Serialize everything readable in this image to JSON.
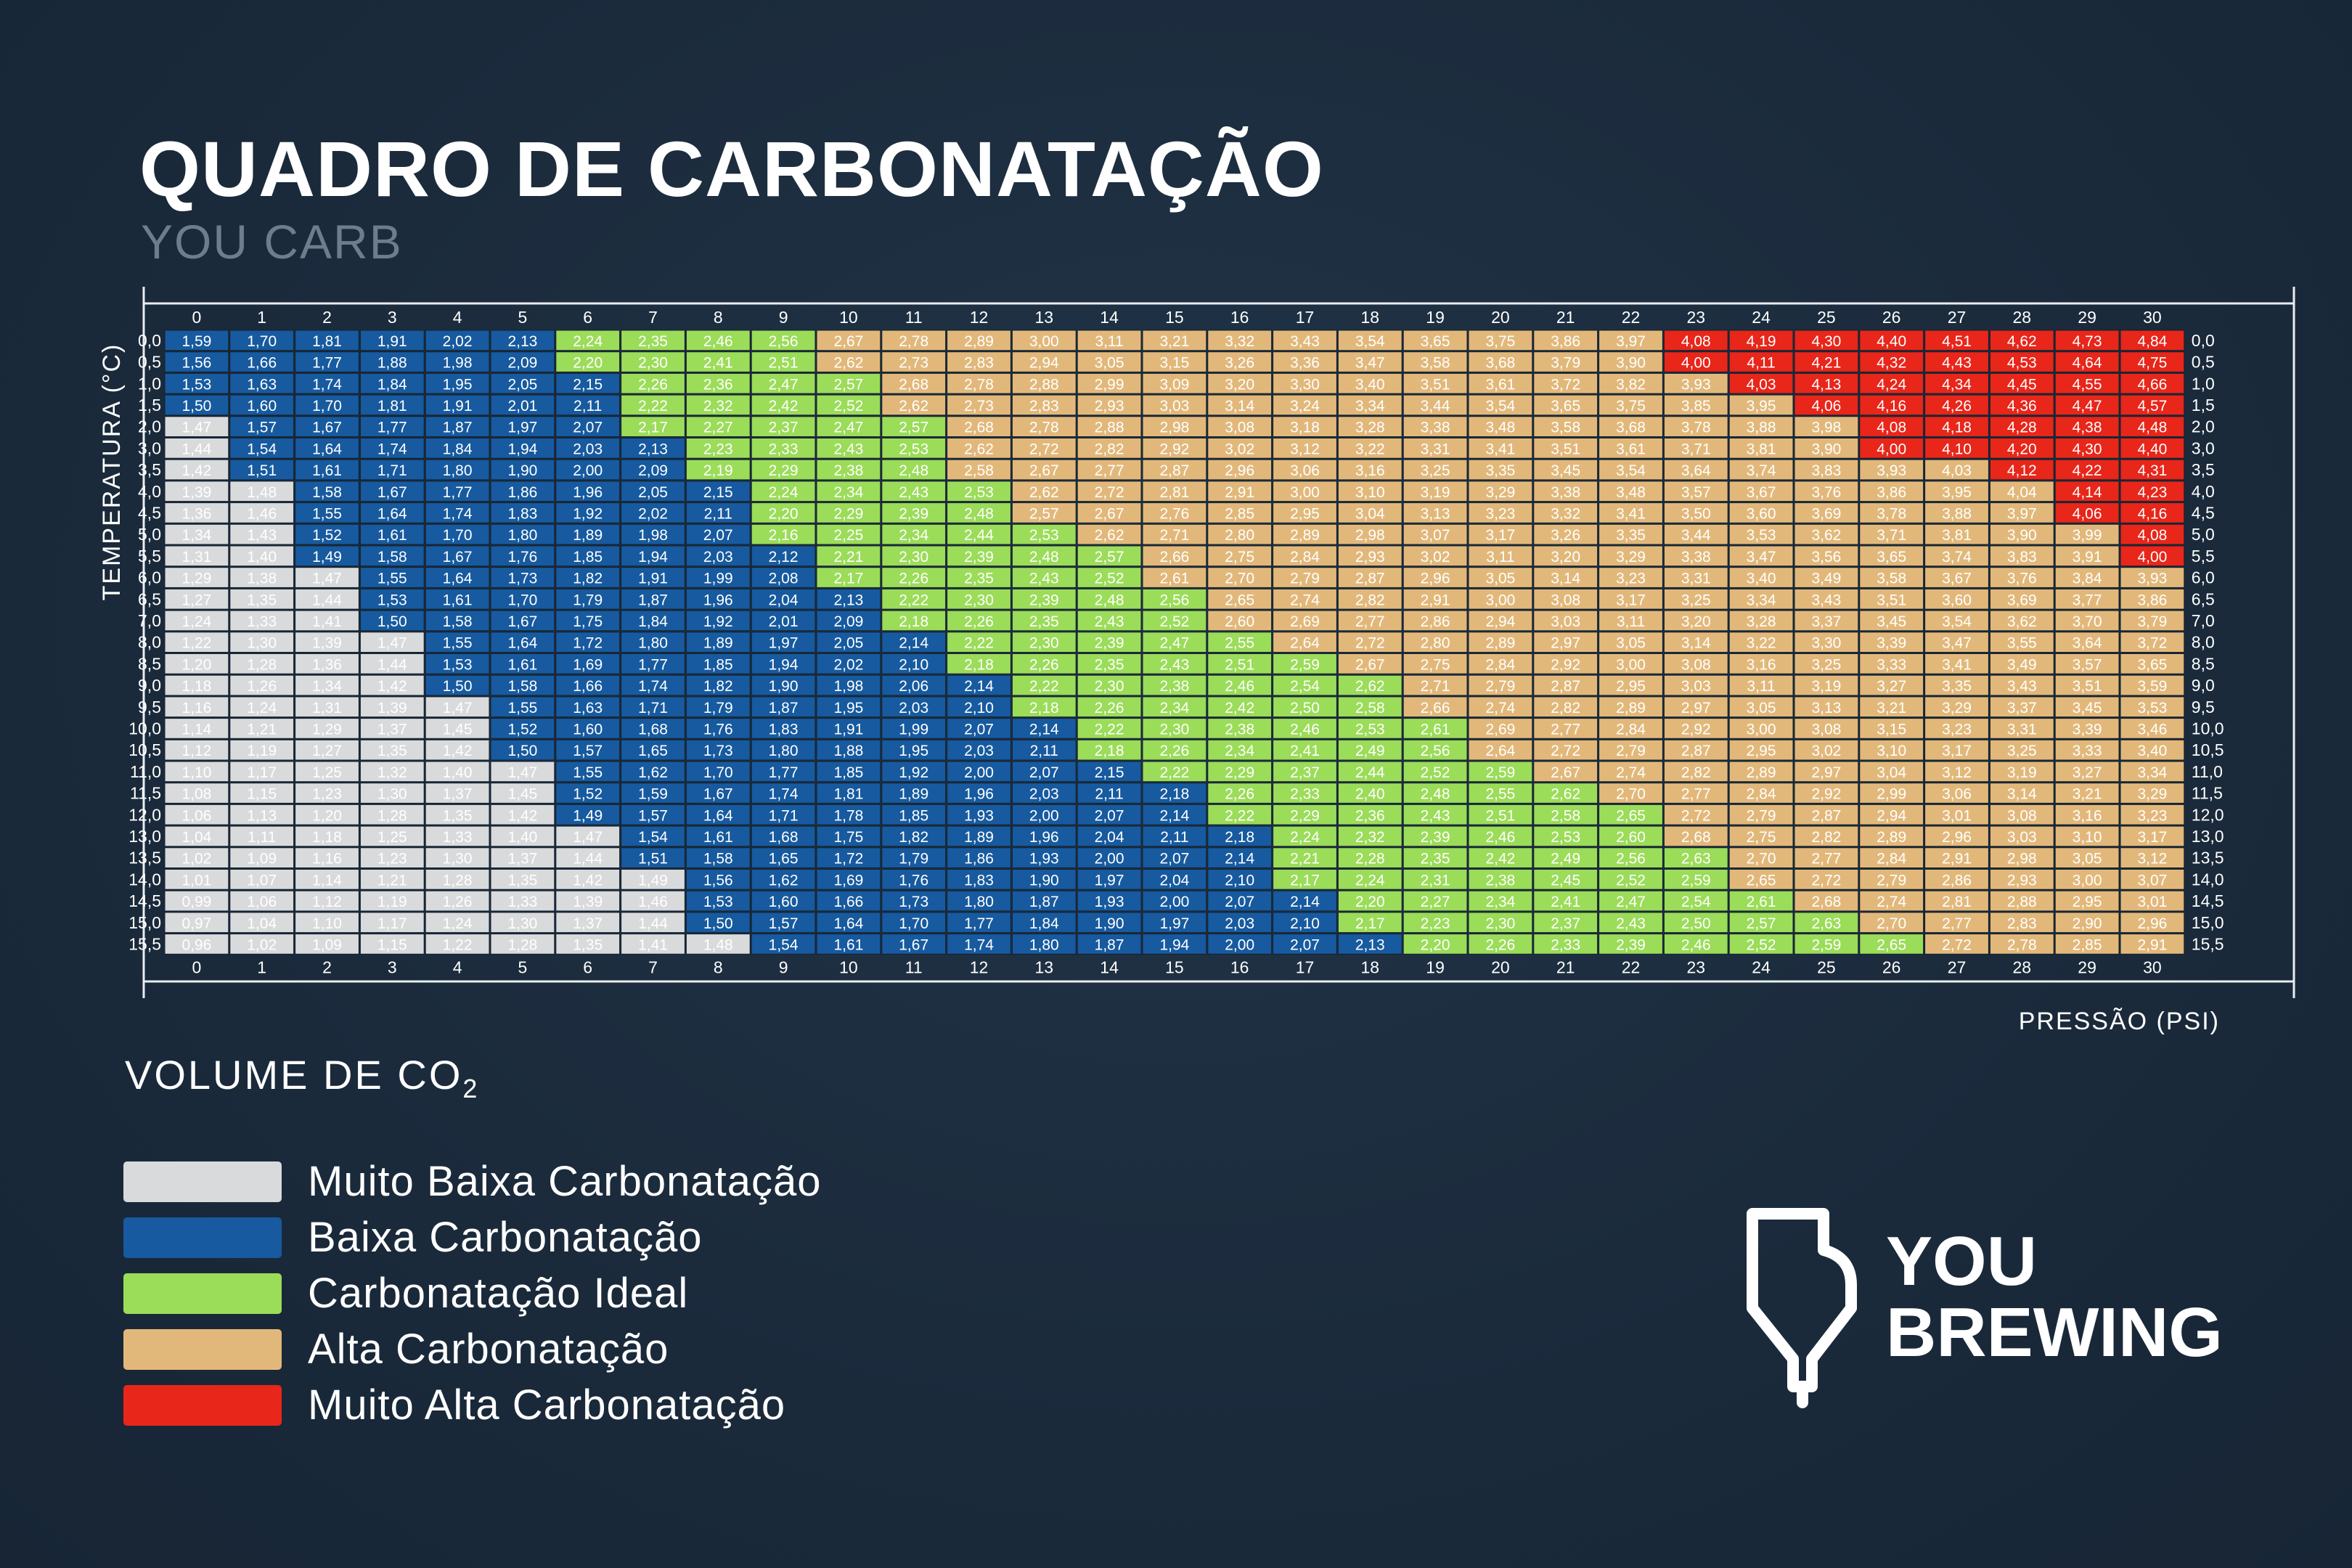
{
  "title": "QUADRO DE CARBONATAÇÃO",
  "subtitle": "YOU CARB",
  "y_axis_label": "TEMPERATURA (°C)",
  "x_axis_label": "PRESSÃO (PSI)",
  "legend": {
    "title": "VOLUME DE CO",
    "title_sub": "2",
    "items": [
      {
        "label": "Muito Baixa Carbonatação",
        "color": "#d9dadc"
      },
      {
        "label": "Baixa Carbonatação",
        "color": "#175a9f"
      },
      {
        "label": "Carbonatação Ideal",
        "color": "#9bdc59"
      },
      {
        "label": "Alta Carbonatação",
        "color": "#e2b87a"
      },
      {
        "label": "Muito Alta Carbonatação",
        "color": "#e8261a"
      }
    ]
  },
  "logo": {
    "line1": "YOU",
    "line2": "BREWING"
  },
  "chart_data": {
    "type": "heatmap",
    "title": "QUADRO DE CARBONATAÇÃO",
    "xlabel": "PRESSÃO (PSI)",
    "ylabel": "TEMPERATURA (°C)",
    "x": [
      "0",
      "1",
      "2",
      "3",
      "4",
      "5",
      "6",
      "7",
      "8",
      "9",
      "10",
      "11",
      "12",
      "13",
      "14",
      "15",
      "16",
      "17",
      "18",
      "19",
      "20",
      "21",
      "22",
      "23",
      "24",
      "25",
      "26",
      "27",
      "28",
      "29",
      "30"
    ],
    "y": [
      "0,0",
      "0,5",
      "1,0",
      "1,5",
      "2,0",
      "3,0",
      "3,5",
      "4,0",
      "4,5",
      "5,0",
      "5,5",
      "6,0",
      "6,5",
      "7,0",
      "8,0",
      "8,5",
      "9,0",
      "9,5",
      "10,0",
      "10,5",
      "11,0",
      "11,5",
      "12,0",
      "13,0",
      "13,5",
      "14,0",
      "14,5",
      "15,0",
      "15,5"
    ],
    "categories_colors": {
      "W": "#d9dadc",
      "B": "#175a9f",
      "G": "#9bdc59",
      "O": "#e2b87a",
      "R": "#e8261a"
    },
    "values": [
      [
        1.59,
        1.7,
        1.81,
        1.91,
        2.02,
        2.13,
        2.24,
        2.35,
        2.46,
        2.56,
        2.67,
        2.78,
        2.89,
        3.0,
        3.11,
        3.21,
        3.32,
        3.43,
        3.54,
        3.65,
        3.75,
        3.86,
        3.97,
        4.08,
        4.19,
        4.3,
        4.4,
        4.51,
        4.62,
        4.73,
        4.84
      ],
      [
        1.56,
        1.66,
        1.77,
        1.88,
        1.98,
        2.09,
        2.2,
        2.3,
        2.41,
        2.51,
        2.62,
        2.73,
        2.83,
        2.94,
        3.05,
        3.15,
        3.26,
        3.36,
        3.47,
        3.58,
        3.68,
        3.79,
        3.9,
        4.0,
        4.11,
        4.21,
        4.32,
        4.43,
        4.53,
        4.64,
        4.75
      ],
      [
        1.53,
        1.63,
        1.74,
        1.84,
        1.95,
        2.05,
        2.15,
        2.26,
        2.36,
        2.47,
        2.57,
        2.68,
        2.78,
        2.88,
        2.99,
        3.09,
        3.2,
        3.3,
        3.4,
        3.51,
        3.61,
        3.72,
        3.82,
        3.93,
        4.03,
        4.13,
        4.24,
        4.34,
        4.45,
        4.55,
        4.66
      ],
      [
        1.5,
        1.6,
        1.7,
        1.81,
        1.91,
        2.01,
        2.11,
        2.22,
        2.32,
        2.42,
        2.52,
        2.62,
        2.73,
        2.83,
        2.93,
        3.03,
        3.14,
        3.24,
        3.34,
        3.44,
        3.54,
        3.65,
        3.75,
        3.85,
        3.95,
        4.06,
        4.16,
        4.26,
        4.36,
        4.47,
        4.57
      ],
      [
        1.47,
        1.57,
        1.67,
        1.77,
        1.87,
        1.97,
        2.07,
        2.17,
        2.27,
        2.37,
        2.47,
        2.57,
        2.68,
        2.78,
        2.88,
        2.98,
        3.08,
        3.18,
        3.28,
        3.38,
        3.48,
        3.58,
        3.68,
        3.78,
        3.88,
        3.98,
        4.08,
        4.18,
        4.28,
        4.38,
        4.48
      ],
      [
        1.44,
        1.54,
        1.64,
        1.74,
        1.84,
        1.94,
        2.03,
        2.13,
        2.23,
        2.33,
        2.43,
        2.53,
        2.62,
        2.72,
        2.82,
        2.92,
        3.02,
        3.12,
        3.22,
        3.31,
        3.41,
        3.51,
        3.61,
        3.71,
        3.81,
        3.9,
        4.0,
        4.1,
        4.2,
        4.3,
        4.4
      ],
      [
        1.42,
        1.51,
        1.61,
        1.71,
        1.8,
        1.9,
        2.0,
        2.09,
        2.19,
        2.29,
        2.38,
        2.48,
        2.58,
        2.67,
        2.77,
        2.87,
        2.96,
        3.06,
        3.16,
        3.25,
        3.35,
        3.45,
        3.54,
        3.64,
        3.74,
        3.83,
        3.93,
        4.03,
        4.12,
        4.22,
        4.31
      ],
      [
        1.39,
        1.48,
        1.58,
        1.67,
        1.77,
        1.86,
        1.96,
        2.05,
        2.15,
        2.24,
        2.34,
        2.43,
        2.53,
        2.62,
        2.72,
        2.81,
        2.91,
        3.0,
        3.1,
        3.19,
        3.29,
        3.38,
        3.48,
        3.57,
        3.67,
        3.76,
        3.86,
        3.95,
        4.04,
        4.14,
        4.23
      ],
      [
        1.36,
        1.46,
        1.55,
        1.64,
        1.74,
        1.83,
        1.92,
        2.02,
        2.11,
        2.2,
        2.29,
        2.39,
        2.48,
        2.57,
        2.67,
        2.76,
        2.85,
        2.95,
        3.04,
        3.13,
        3.23,
        3.32,
        3.41,
        3.5,
        3.6,
        3.69,
        3.78,
        3.88,
        3.97,
        4.06,
        4.16
      ],
      [
        1.34,
        1.43,
        1.52,
        1.61,
        1.7,
        1.8,
        1.89,
        1.98,
        2.07,
        2.16,
        2.25,
        2.34,
        2.44,
        2.53,
        2.62,
        2.71,
        2.8,
        2.89,
        2.98,
        3.07,
        3.17,
        3.26,
        3.35,
        3.44,
        3.53,
        3.62,
        3.71,
        3.81,
        3.9,
        3.99,
        4.08
      ],
      [
        1.31,
        1.4,
        1.49,
        1.58,
        1.67,
        1.76,
        1.85,
        1.94,
        2.03,
        2.12,
        2.21,
        2.3,
        2.39,
        2.48,
        2.57,
        2.66,
        2.75,
        2.84,
        2.93,
        3.02,
        3.11,
        3.2,
        3.29,
        3.38,
        3.47,
        3.56,
        3.65,
        3.74,
        3.83,
        3.91,
        4.0
      ],
      [
        1.29,
        1.38,
        1.47,
        1.55,
        1.64,
        1.73,
        1.82,
        1.91,
        1.99,
        2.08,
        2.17,
        2.26,
        2.35,
        2.43,
        2.52,
        2.61,
        2.7,
        2.79,
        2.87,
        2.96,
        3.05,
        3.14,
        3.23,
        3.31,
        3.4,
        3.49,
        3.58,
        3.67,
        3.76,
        3.84,
        3.93
      ],
      [
        1.27,
        1.35,
        1.44,
        1.53,
        1.61,
        1.7,
        1.79,
        1.87,
        1.96,
        2.04,
        2.13,
        2.22,
        2.3,
        2.39,
        2.48,
        2.56,
        2.65,
        2.74,
        2.82,
        2.91,
        3.0,
        3.08,
        3.17,
        3.25,
        3.34,
        3.43,
        3.51,
        3.6,
        3.69,
        3.77,
        3.86
      ],
      [
        1.24,
        1.33,
        1.41,
        1.5,
        1.58,
        1.67,
        1.75,
        1.84,
        1.92,
        2.01,
        2.09,
        2.18,
        2.26,
        2.35,
        2.43,
        2.52,
        2.6,
        2.69,
        2.77,
        2.86,
        2.94,
        3.03,
        3.11,
        3.2,
        3.28,
        3.37,
        3.45,
        3.54,
        3.62,
        3.7,
        3.79
      ],
      [
        1.22,
        1.3,
        1.39,
        1.47,
        1.55,
        1.64,
        1.72,
        1.8,
        1.89,
        1.97,
        2.05,
        2.14,
        2.22,
        2.3,
        2.39,
        2.47,
        2.55,
        2.64,
        2.72,
        2.8,
        2.89,
        2.97,
        3.05,
        3.14,
        3.22,
        3.3,
        3.39,
        3.47,
        3.55,
        3.64,
        3.72
      ],
      [
        1.2,
        1.28,
        1.36,
        1.44,
        1.53,
        1.61,
        1.69,
        1.77,
        1.85,
        1.94,
        2.02,
        2.1,
        2.18,
        2.26,
        2.35,
        2.43,
        2.51,
        2.59,
        2.67,
        2.75,
        2.84,
        2.92,
        3.0,
        3.08,
        3.16,
        3.25,
        3.33,
        3.41,
        3.49,
        3.57,
        3.65
      ],
      [
        1.18,
        1.26,
        1.34,
        1.42,
        1.5,
        1.58,
        1.66,
        1.74,
        1.82,
        1.9,
        1.98,
        2.06,
        2.14,
        2.22,
        2.3,
        2.38,
        2.46,
        2.54,
        2.62,
        2.71,
        2.79,
        2.87,
        2.95,
        3.03,
        3.11,
        3.19,
        3.27,
        3.35,
        3.43,
        3.51,
        3.59
      ],
      [
        1.16,
        1.24,
        1.31,
        1.39,
        1.47,
        1.55,
        1.63,
        1.71,
        1.79,
        1.87,
        1.95,
        2.03,
        2.1,
        2.18,
        2.26,
        2.34,
        2.42,
        2.5,
        2.58,
        2.66,
        2.74,
        2.82,
        2.89,
        2.97,
        3.05,
        3.13,
        3.21,
        3.29,
        3.37,
        3.45,
        3.53
      ],
      [
        1.14,
        1.21,
        1.29,
        1.37,
        1.45,
        1.52,
        1.6,
        1.68,
        1.76,
        1.83,
        1.91,
        1.99,
        2.07,
        2.14,
        2.22,
        2.3,
        2.38,
        2.46,
        2.53,
        2.61,
        2.69,
        2.77,
        2.84,
        2.92,
        3.0,
        3.08,
        3.15,
        3.23,
        3.31,
        3.39,
        3.46
      ],
      [
        1.12,
        1.19,
        1.27,
        1.35,
        1.42,
        1.5,
        1.57,
        1.65,
        1.73,
        1.8,
        1.88,
        1.95,
        2.03,
        2.11,
        2.18,
        2.26,
        2.34,
        2.41,
        2.49,
        2.56,
        2.64,
        2.72,
        2.79,
        2.87,
        2.95,
        3.02,
        3.1,
        3.17,
        3.25,
        3.33,
        3.4
      ],
      [
        1.1,
        1.17,
        1.25,
        1.32,
        1.4,
        1.47,
        1.55,
        1.62,
        1.7,
        1.77,
        1.85,
        1.92,
        2.0,
        2.07,
        2.15,
        2.22,
        2.29,
        2.37,
        2.44,
        2.52,
        2.59,
        2.67,
        2.74,
        2.82,
        2.89,
        2.97,
        3.04,
        3.12,
        3.19,
        3.27,
        3.34
      ],
      [
        1.08,
        1.15,
        1.23,
        1.3,
        1.37,
        1.45,
        1.52,
        1.59,
        1.67,
        1.74,
        1.81,
        1.89,
        1.96,
        2.03,
        2.11,
        2.18,
        2.26,
        2.33,
        2.4,
        2.48,
        2.55,
        2.62,
        2.7,
        2.77,
        2.84,
        2.92,
        2.99,
        3.06,
        3.14,
        3.21,
        3.29
      ],
      [
        1.06,
        1.13,
        1.2,
        1.28,
        1.35,
        1.42,
        1.49,
        1.57,
        1.64,
        1.71,
        1.78,
        1.85,
        1.93,
        2.0,
        2.07,
        2.14,
        2.22,
        2.29,
        2.36,
        2.43,
        2.51,
        2.58,
        2.65,
        2.72,
        2.79,
        2.87,
        2.94,
        3.01,
        3.08,
        3.16,
        3.23
      ],
      [
        1.04,
        1.11,
        1.18,
        1.25,
        1.33,
        1.4,
        1.47,
        1.54,
        1.61,
        1.68,
        1.75,
        1.82,
        1.89,
        1.96,
        2.04,
        2.11,
        2.18,
        2.24,
        2.32,
        2.39,
        2.46,
        2.53,
        2.6,
        2.68,
        2.75,
        2.82,
        2.89,
        2.96,
        3.03,
        3.1,
        3.17
      ],
      [
        1.02,
        1.09,
        1.16,
        1.23,
        1.3,
        1.37,
        1.44,
        1.51,
        1.58,
        1.65,
        1.72,
        1.79,
        1.86,
        1.93,
        2.0,
        2.07,
        2.14,
        2.21,
        2.28,
        2.35,
        2.42,
        2.49,
        2.56,
        2.63,
        2.7,
        2.77,
        2.84,
        2.91,
        2.98,
        3.05,
        3.12
      ],
      [
        1.01,
        1.07,
        1.14,
        1.21,
        1.28,
        1.35,
        1.42,
        1.49,
        1.56,
        1.62,
        1.69,
        1.76,
        1.83,
        1.9,
        1.97,
        2.04,
        2.1,
        2.17,
        2.24,
        2.31,
        2.38,
        2.45,
        2.52,
        2.59,
        2.65,
        2.72,
        2.79,
        2.86,
        2.93,
        3.0,
        3.07
      ],
      [
        0.99,
        1.06,
        1.12,
        1.19,
        1.26,
        1.33,
        1.39,
        1.46,
        1.53,
        1.6,
        1.66,
        1.73,
        1.8,
        1.87,
        1.93,
        2.0,
        2.07,
        2.14,
        2.2,
        2.27,
        2.34,
        2.41,
        2.47,
        2.54,
        2.61,
        2.68,
        2.74,
        2.81,
        2.88,
        2.95,
        3.01
      ],
      [
        0.97,
        1.04,
        1.1,
        1.17,
        1.24,
        1.3,
        1.37,
        1.44,
        1.5,
        1.57,
        1.64,
        1.7,
        1.77,
        1.84,
        1.9,
        1.97,
        2.03,
        2.1,
        2.17,
        2.23,
        2.3,
        2.37,
        2.43,
        2.5,
        2.57,
        2.63,
        2.7,
        2.77,
        2.83,
        2.9,
        2.96
      ],
      [
        0.96,
        1.02,
        1.09,
        1.15,
        1.22,
        1.28,
        1.35,
        1.41,
        1.48,
        1.54,
        1.61,
        1.67,
        1.74,
        1.8,
        1.87,
        1.94,
        2.0,
        2.07,
        2.13,
        2.2,
        2.26,
        2.33,
        2.39,
        2.46,
        2.52,
        2.59,
        2.65,
        2.72,
        2.78,
        2.85,
        2.91
      ]
    ],
    "category_map": [
      "BBBBBBGGGGOOOOOOOOOOOOORRRRRRRR",
      "BBBBBBGGGGOOOOOOOOOOOOORRRRRRRR",
      "BBBBBBBGGGGOOOOOOOOOOOOORRRRRRR",
      "BBBBBBBGGGGOOOOOOOOOOOOOORRRRRR",
      "WBBBBBBGGGGGOOOOOOOOOOOOOORRRRR",
      "WBBBBBBBGGGGOOOOOOOOOOOOOORRRRR",
      "WBBBBBBBGGGGOOOOOOOOOOOOOOOORRR",
      "WWBBBBBBBGGGGOOOOOOOOOOOOOOOORR",
      "WWBBBBBBBGGGGOOOOOOOOOOOOOOOORR",
      "WWBBBBBBBGGGGGOOOOOOOOOOOOOOOOR",
      "WWBBBBBBBBGGGGGOOOOOOOOOOOOOOOR",
      "WWWBBBBBBBGGGGGOOOOOOOOOOOOOOOO",
      "WWWBBBBBBBBGGGGGOOOOOOOOOOOOOOO",
      "WWWBBBBBBBBGGGGGOOOOOOOOOOOOOOO",
      "WWWWBBBBBBBBGGGGGOOOOOOOOOOOOOO",
      "WWWWBBBBBBBBGGGGGGOOOOOOOOOOOOO",
      "WWWWBBBBBBBBBGGGGGGOOOOOOOOOOOO",
      "WWWWWBBBBBBBBGGGGGGOOOOOOOOOOOO",
      "WWWWWBBBBBBBBBGGGGGGOOOOOOOOOOO",
      "WWWWWBBBBBBBBBGGGGGGOOOOOOOOOOO",
      "WWWWWWBBBBBBBBBGGGGGGOOOOOOOOOO",
      "WWWWWWBBBBBBBBBBGGGGGGOOOOOOOOO",
      "WWWWWWBBBBBBBBBBGGGGGGGOOOOOOOO",
      "WWWWWWWBBBBBBBBBBGGGGGGOOOOOOOO",
      "WWWWWWWBBBBBBBBBBGGGGGGGOOOOOOO",
      "WWWWWWWWBBBBBBBBBGGGGGGGOOOOOOO",
      "WWWWWWWWBBBBBBBBBBGGGGGGGOOOOOO",
      "WWWWWWWWBBBBBBBBBBGGGGGGGGOOOOO",
      "WWWWWWWWWBBBBBBBBBBGGGGGGGGOOOO"
    ]
  }
}
